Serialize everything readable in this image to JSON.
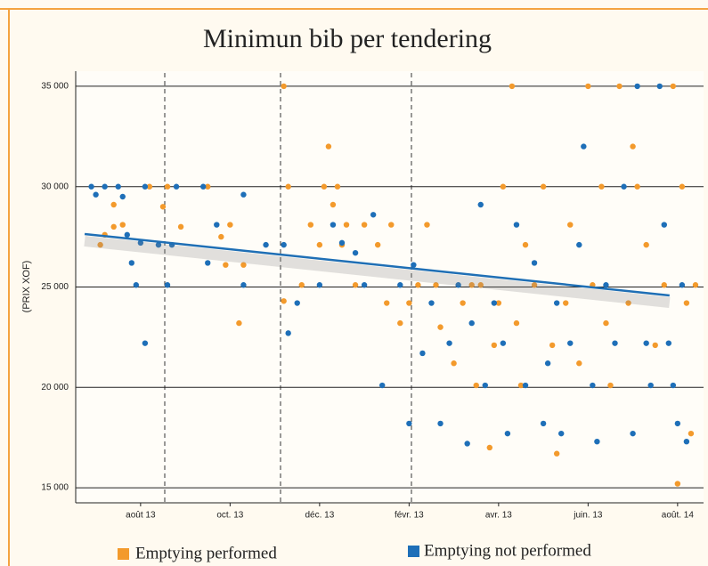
{
  "chart_data": {
    "type": "scatter",
    "title": "Minimun bib per tendering",
    "ylabel": "(PRIX XOF)",
    "xlim": [
      -1.45,
      12.58
    ],
    "ylim": [
      14250,
      35750
    ],
    "xticks": [
      {
        "value": 0,
        "label": "août 13"
      },
      {
        "value": 2,
        "label": "oct. 13"
      },
      {
        "value": 4,
        "label": "déc. 13"
      },
      {
        "value": 6,
        "label": "févr. 13"
      },
      {
        "value": 8,
        "label": "avr. 13"
      },
      {
        "value": 10,
        "label": "juin. 13"
      },
      {
        "value": 12,
        "label": "août. 14"
      }
    ],
    "yticks": [
      {
        "value": 15000,
        "label": "15 000"
      },
      {
        "value": 20000,
        "label": "20 000"
      },
      {
        "value": 25000,
        "label": "25 000"
      },
      {
        "value": 30000,
        "label": "30 000"
      },
      {
        "value": 35000,
        "label": "35 000"
      }
    ],
    "grid": true,
    "legend": "bottom",
    "series": [
      {
        "name": "Emptying performed",
        "color": "#f39a2c",
        "x": [
          -0.9,
          -0.8,
          -0.6,
          -0.4,
          -0.6,
          0.2,
          0.5,
          0.6,
          0.9,
          1.5,
          1.8,
          1.9,
          2.0,
          2.3,
          2.2,
          3.2,
          3.3,
          3.2,
          3.6,
          3.8,
          4.0,
          4.1,
          4.3,
          4.2,
          4.4,
          4.6,
          4.5,
          4.8,
          5.0,
          5.3,
          5.5,
          5.6,
          5.8,
          6.0,
          6.2,
          6.4,
          6.6,
          6.7,
          7.0,
          7.2,
          7.4,
          7.5,
          7.6,
          7.8,
          7.9,
          8.0,
          8.1,
          8.3,
          8.4,
          8.5,
          8.6,
          8.8,
          9.0,
          9.2,
          9.3,
          9.5,
          9.6,
          9.8,
          10.0,
          10.1,
          10.3,
          10.4,
          10.5,
          10.7,
          10.9,
          11.0,
          11.1,
          11.3,
          11.5,
          11.7,
          11.9,
          12.0,
          12.1,
          12.2,
          12.3,
          12.4
        ],
        "values": [
          27100,
          27600,
          28000,
          28100,
          29100,
          30000,
          29000,
          30000,
          28000,
          30000,
          27500,
          26100,
          28100,
          26100,
          23200,
          35000,
          30000,
          24300,
          25100,
          28100,
          27100,
          30000,
          29100,
          32000,
          30000,
          28100,
          27100,
          25100,
          28100,
          27100,
          24200,
          28100,
          23200,
          24200,
          25100,
          28100,
          25100,
          23000,
          21200,
          24200,
          25100,
          20100,
          25100,
          17000,
          22100,
          24200,
          30000,
          35000,
          23200,
          20100,
          27100,
          25100,
          30000,
          22100,
          16700,
          24200,
          28100,
          21200,
          35000,
          25100,
          30000,
          23200,
          20100,
          35000,
          24200,
          32000,
          30000,
          27100,
          22100,
          25100,
          35000,
          15200,
          30000,
          24200,
          17700,
          25100
        ]
      },
      {
        "name": "Emptying not performed",
        "color": "#1e6fb8",
        "x": [
          -1.1,
          -1.0,
          -0.8,
          -0.5,
          -0.4,
          -0.3,
          -0.2,
          -0.1,
          0.0,
          0.1,
          0.1,
          0.4,
          0.6,
          0.7,
          0.8,
          1.4,
          1.5,
          1.7,
          2.3,
          2.3,
          2.8,
          3.2,
          3.3,
          3.5,
          4.0,
          4.3,
          4.5,
          4.8,
          5.0,
          5.2,
          5.4,
          5.8,
          6.0,
          6.1,
          6.3,
          6.5,
          6.7,
          6.9,
          7.1,
          7.3,
          7.4,
          7.6,
          7.7,
          7.9,
          8.1,
          8.2,
          8.4,
          8.6,
          8.8,
          9.0,
          9.1,
          9.3,
          9.4,
          9.6,
          9.8,
          9.9,
          10.1,
          10.2,
          10.4,
          10.6,
          10.8,
          11.0,
          11.1,
          11.3,
          11.4,
          11.6,
          11.7,
          11.8,
          11.9,
          12.0,
          12.1,
          12.2
        ],
        "values": [
          30000,
          29600,
          30000,
          30000,
          29500,
          27600,
          26200,
          25100,
          27200,
          22200,
          30000,
          27100,
          25100,
          27100,
          30000,
          30000,
          26200,
          28100,
          25100,
          29600,
          27100,
          27100,
          22700,
          24200,
          25100,
          28100,
          27200,
          26700,
          25100,
          28600,
          20100,
          25100,
          18200,
          26100,
          21700,
          24200,
          18200,
          22200,
          25100,
          17200,
          23200,
          29100,
          20100,
          24200,
          22200,
          17700,
          28100,
          20100,
          26200,
          18200,
          21200,
          24200,
          17700,
          22200,
          27100,
          32000,
          20100,
          17300,
          25100,
          22200,
          30000,
          17700,
          35000,
          22200,
          20100,
          35000,
          28100,
          22200,
          20100,
          18200,
          25100,
          17300
        ]
      }
    ],
    "trend": {
      "color": "#1f6fb5",
      "x": [
        -1.25,
        11.82
      ],
      "values": [
        27640,
        24580
      ]
    }
  }
}
